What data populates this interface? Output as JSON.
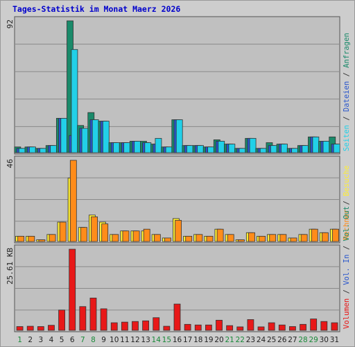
{
  "chart_data": {
    "type": "bar",
    "title": "Tages-Statistik im Monat Maerz 2026",
    "days": [
      "1",
      "2",
      "3",
      "4",
      "5",
      "6",
      "7",
      "8",
      "9",
      "10",
      "11",
      "12",
      "13",
      "14",
      "15",
      "16",
      "17",
      "18",
      "19",
      "20",
      "21",
      "22",
      "23",
      "24",
      "25",
      "26",
      "27",
      "28",
      "29",
      "30",
      "31"
    ],
    "weekend_days": [
      "1",
      "7",
      "8",
      "14",
      "15",
      "21",
      "22",
      "28",
      "29"
    ],
    "panels": [
      {
        "max_label": "92",
        "ylim": [
          0,
          92
        ],
        "series": [
          {
            "name": "Anfragen",
            "color": "#1a8a6a",
            "values": [
              4,
              4,
              3,
              5,
              24,
              92,
              19,
              28,
              22,
              7,
              7,
              8,
              8,
              6,
              4,
              23,
              5,
              5,
              4,
              9,
              6,
              3,
              10,
              3,
              7,
              6,
              3,
              5,
              11,
              8,
              11
            ]
          },
          {
            "name": "Dateien",
            "color": "#2855cc",
            "values": [
              3,
              4,
              3,
              5,
              24,
              12,
              17,
              23,
              22,
              7,
              7,
              8,
              7,
              6,
              4,
              23,
              5,
              5,
              4,
              8,
              6,
              3,
              10,
              3,
              5,
              6,
              3,
              5,
              11,
              8,
              6
            ]
          },
          {
            "name": "Seiten",
            "color": "#22d0e8",
            "values": [
              3,
              4,
              3,
              5,
              24,
              72,
              17,
              23,
              22,
              7,
              7,
              8,
              7,
              10,
              4,
              23,
              5,
              5,
              4,
              8,
              6,
              3,
              10,
              3,
              5,
              6,
              3,
              5,
              11,
              8,
              6
            ]
          }
        ],
        "label_parts": [
          {
            "text": "Seiten",
            "color": "#22d0e8"
          },
          {
            "text": " / ",
            "color": "#333333"
          },
          {
            "text": "Dateien",
            "color": "#2855cc"
          },
          {
            "text": " / ",
            "color": "#333333"
          },
          {
            "text": "Anfragen",
            "color": "#1a8a6a"
          }
        ]
      },
      {
        "max_label": "46",
        "ylim": [
          0,
          46
        ],
        "series": [
          {
            "name": "Besuche",
            "color": "#ffee33",
            "values": [
              3,
              3,
              1,
              4,
              11,
              36,
              8,
              15,
              11,
              4,
              6,
              6,
              6,
              4,
              2,
              13,
              3,
              4,
              3,
              7,
              4,
              1,
              5,
              3,
              4,
              4,
              2,
              4,
              7,
              5,
              7
            ]
          },
          {
            "name": "Rechner",
            "color": "#ff8c1a",
            "values": [
              3,
              3,
              1,
              4,
              11,
              46,
              8,
              14,
              10,
              4,
              6,
              6,
              7,
              4,
              2,
              12,
              3,
              4,
              3,
              7,
              4,
              1,
              5,
              3,
              4,
              4,
              2,
              4,
              7,
              5,
              7
            ]
          }
        ],
        "label_parts": [
          {
            "text": "Rechner",
            "color": "#ff8c1a"
          },
          {
            "text": " / ",
            "color": "#333333"
          },
          {
            "text": "Besuche",
            "color": "#ffee33"
          }
        ]
      },
      {
        "max_label": "25.61 KB",
        "ylim": [
          0,
          25.61
        ],
        "series": [
          {
            "name": "Volumen",
            "color": "#e81818",
            "values": [
              1.2,
              1.3,
              1.2,
              1.6,
              6.4,
              25.6,
              7.5,
              10.2,
              6.8,
              2.4,
              2.6,
              2.8,
              3.0,
              4.0,
              1.3,
              8.3,
              1.9,
              1.7,
              1.7,
              3.2,
              1.5,
              1.1,
              3.4,
              1.1,
              2.4,
              1.7,
              1.2,
              1.9,
              3.6,
              2.8,
              2.4
            ]
          }
        ],
        "label_parts": [
          {
            "text": "Volumen",
            "color": "#e81818"
          },
          {
            "text": " / ",
            "color": "#333333"
          },
          {
            "text": "Vol. In",
            "color": "#2855cc"
          },
          {
            "text": " / ",
            "color": "#333333"
          },
          {
            "text": "Vol. Out",
            "color": "#1a8a6a"
          }
        ]
      }
    ],
    "colors": {
      "title": "#0000cc",
      "weekday_label": "#222222",
      "weekend_label": "#1a8a3a",
      "plot_background": "#c0c0c0",
      "page_background": "#cdcdcd"
    }
  }
}
